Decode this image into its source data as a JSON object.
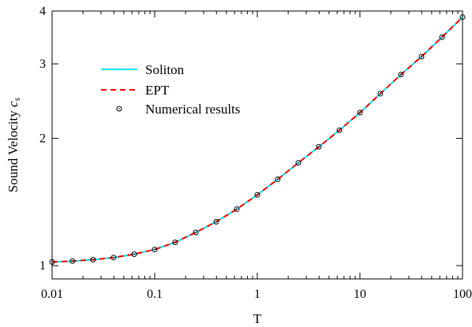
{
  "chart_data": {
    "type": "line",
    "title": "",
    "xlabel": "T",
    "ylabel": "Sound Velocity",
    "ylabel_symbol": "c",
    "ylabel_subscript": "s",
    "xscale": "log",
    "yscale": "log",
    "xlim": [
      0.01,
      100
    ],
    "ylim": [
      0.93,
      4
    ],
    "x_ticks": [
      0.01,
      0.1,
      1,
      10,
      100
    ],
    "x_tick_labels": [
      "0.01",
      "0.1",
      "1",
      "10",
      "100"
    ],
    "y_ticks": [
      1,
      2,
      3,
      4
    ],
    "y_tick_labels": [
      "1",
      "2",
      "3",
      "4"
    ],
    "grid": false,
    "legend_position": "top-left",
    "series": [
      {
        "name": "Soliton",
        "style": "solid",
        "color": "#00e5ee",
        "x": [
          0.01,
          0.0158,
          0.0251,
          0.0398,
          0.0631,
          0.1,
          0.158,
          0.251,
          0.398,
          0.631,
          1,
          1.58,
          2.51,
          3.98,
          6.31,
          10,
          15.8,
          25.1,
          39.8,
          63.1,
          100
        ],
        "values": [
          1.02,
          1.025,
          1.033,
          1.045,
          1.064,
          1.092,
          1.135,
          1.198,
          1.27,
          1.36,
          1.47,
          1.6,
          1.75,
          1.91,
          2.09,
          2.3,
          2.55,
          2.83,
          3.12,
          3.47,
          3.87
        ]
      },
      {
        "name": "EPT",
        "style": "dashed",
        "color": "#ff0000",
        "x": [
          0.01,
          0.0158,
          0.0251,
          0.0398,
          0.0631,
          0.1,
          0.158,
          0.251,
          0.398,
          0.631,
          1,
          1.58,
          2.51,
          3.98,
          6.31,
          10,
          15.8,
          25.1,
          39.8,
          63.1,
          100
        ],
        "values": [
          1.02,
          1.025,
          1.033,
          1.045,
          1.064,
          1.092,
          1.135,
          1.198,
          1.27,
          1.36,
          1.47,
          1.6,
          1.75,
          1.91,
          2.09,
          2.3,
          2.55,
          2.83,
          3.12,
          3.47,
          3.87
        ]
      },
      {
        "name": "Numerical results",
        "style": "markers",
        "color": "#000000",
        "x": [
          0.01,
          0.0158,
          0.0251,
          0.0398,
          0.0631,
          0.1,
          0.158,
          0.251,
          0.398,
          0.631,
          1,
          1.58,
          2.51,
          3.98,
          6.31,
          10,
          15.8,
          25.1,
          39.8,
          63.1,
          100
        ],
        "values": [
          1.02,
          1.025,
          1.033,
          1.045,
          1.064,
          1.092,
          1.135,
          1.198,
          1.27,
          1.36,
          1.47,
          1.6,
          1.75,
          1.91,
          2.09,
          2.3,
          2.55,
          2.83,
          3.12,
          3.47,
          3.87
        ]
      }
    ]
  }
}
